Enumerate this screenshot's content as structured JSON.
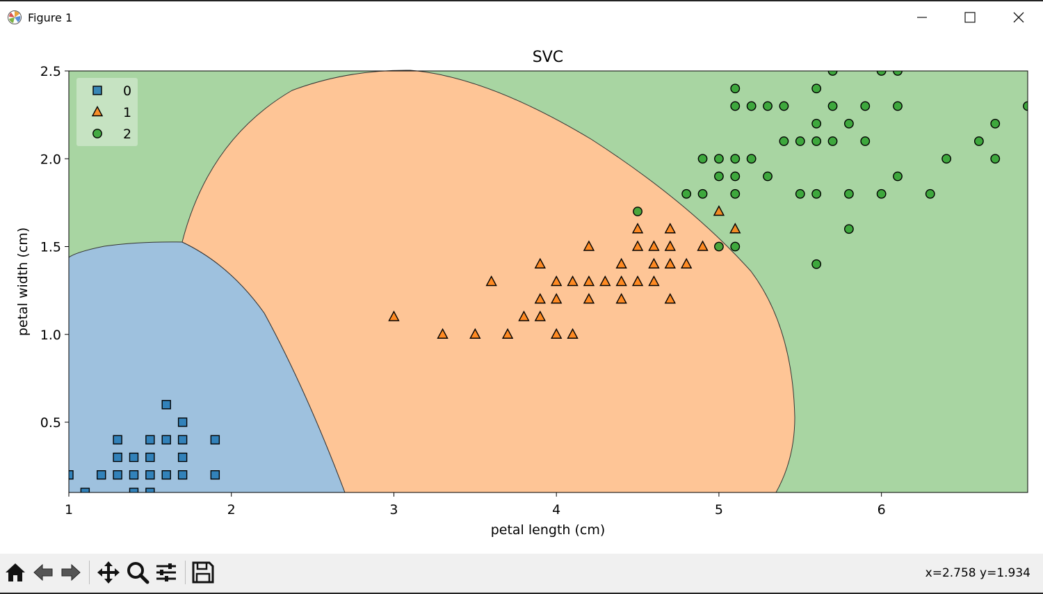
{
  "window": {
    "title": "Figure 1"
  },
  "toolbar": {
    "icons": [
      "home-icon",
      "back-icon",
      "forward-icon",
      "pan-icon",
      "zoom-icon",
      "configure-icon",
      "save-icon"
    ],
    "coords": "x=2.758 y=1.934"
  },
  "chart_data": {
    "type": "scatter",
    "title": "SVC",
    "xlabel": "petal length (cm)",
    "ylabel": "petal width (cm)",
    "xlim": [
      1.0,
      6.9
    ],
    "ylim": [
      0.1,
      2.5
    ],
    "xticks": [
      1,
      2,
      3,
      4,
      5,
      6
    ],
    "xtick_labels": [
      "1",
      "2",
      "3",
      "4",
      "5",
      "6"
    ],
    "yticks": [
      0.5,
      1.0,
      1.5,
      2.0,
      2.5
    ],
    "ytick_labels": [
      "0.5",
      "1.0",
      "1.5",
      "2.0",
      "2.5"
    ],
    "legend_position": "upper left",
    "grid": false,
    "decision_regions": {
      "colors": {
        "0": "#9ec1de",
        "1": "#fec596",
        "2": "#a8d5a2"
      }
    },
    "series": [
      {
        "name": "0",
        "marker": "square",
        "color": "#1f77b4",
        "points": [
          [
            1.0,
            0.2
          ],
          [
            1.1,
            0.1
          ],
          [
            1.2,
            0.2
          ],
          [
            1.3,
            0.2
          ],
          [
            1.3,
            0.3
          ],
          [
            1.3,
            0.4
          ],
          [
            1.4,
            0.1
          ],
          [
            1.4,
            0.2
          ],
          [
            1.4,
            0.3
          ],
          [
            1.5,
            0.1
          ],
          [
            1.5,
            0.2
          ],
          [
            1.5,
            0.3
          ],
          [
            1.5,
            0.4
          ],
          [
            1.6,
            0.2
          ],
          [
            1.6,
            0.4
          ],
          [
            1.6,
            0.6
          ],
          [
            1.7,
            0.2
          ],
          [
            1.7,
            0.3
          ],
          [
            1.7,
            0.4
          ],
          [
            1.7,
            0.5
          ],
          [
            1.9,
            0.2
          ],
          [
            1.9,
            0.4
          ]
        ]
      },
      {
        "name": "1",
        "marker": "triangle",
        "color": "#ff7f0e",
        "points": [
          [
            3.0,
            1.1
          ],
          [
            3.3,
            1.0
          ],
          [
            3.5,
            1.0
          ],
          [
            3.6,
            1.3
          ],
          [
            3.7,
            1.0
          ],
          [
            3.8,
            1.1
          ],
          [
            3.9,
            1.1
          ],
          [
            3.9,
            1.2
          ],
          [
            3.9,
            1.4
          ],
          [
            4.0,
            1.0
          ],
          [
            4.0,
            1.2
          ],
          [
            4.0,
            1.3
          ],
          [
            4.1,
            1.0
          ],
          [
            4.1,
            1.3
          ],
          [
            4.2,
            1.2
          ],
          [
            4.2,
            1.3
          ],
          [
            4.2,
            1.5
          ],
          [
            4.3,
            1.3
          ],
          [
            4.4,
            1.2
          ],
          [
            4.4,
            1.3
          ],
          [
            4.4,
            1.4
          ],
          [
            4.5,
            1.3
          ],
          [
            4.5,
            1.5
          ],
          [
            4.5,
            1.6
          ],
          [
            4.6,
            1.3
          ],
          [
            4.6,
            1.4
          ],
          [
            4.6,
            1.5
          ],
          [
            4.7,
            1.2
          ],
          [
            4.7,
            1.4
          ],
          [
            4.7,
            1.5
          ],
          [
            4.7,
            1.6
          ],
          [
            4.8,
            1.4
          ],
          [
            4.9,
            1.5
          ],
          [
            5.0,
            1.7
          ],
          [
            5.1,
            1.6
          ]
        ]
      },
      {
        "name": "2",
        "marker": "circle",
        "color": "#2ca02c",
        "points": [
          [
            4.5,
            1.7
          ],
          [
            4.8,
            1.8
          ],
          [
            4.9,
            1.8
          ],
          [
            4.9,
            2.0
          ],
          [
            5.0,
            1.5
          ],
          [
            5.0,
            1.9
          ],
          [
            5.0,
            2.0
          ],
          [
            5.1,
            1.5
          ],
          [
            5.1,
            1.8
          ],
          [
            5.1,
            1.9
          ],
          [
            5.1,
            2.0
          ],
          [
            5.1,
            2.3
          ],
          [
            5.1,
            2.4
          ],
          [
            5.2,
            2.0
          ],
          [
            5.2,
            2.3
          ],
          [
            5.3,
            1.9
          ],
          [
            5.3,
            2.3
          ],
          [
            5.4,
            2.1
          ],
          [
            5.4,
            2.3
          ],
          [
            5.5,
            1.8
          ],
          [
            5.5,
            2.1
          ],
          [
            5.6,
            1.4
          ],
          [
            5.6,
            1.8
          ],
          [
            5.6,
            2.1
          ],
          [
            5.6,
            2.2
          ],
          [
            5.6,
            2.4
          ],
          [
            5.7,
            2.1
          ],
          [
            5.7,
            2.3
          ],
          [
            5.7,
            2.5
          ],
          [
            5.8,
            1.6
          ],
          [
            5.8,
            1.8
          ],
          [
            5.8,
            2.2
          ],
          [
            5.9,
            2.1
          ],
          [
            5.9,
            2.3
          ],
          [
            6.0,
            1.8
          ],
          [
            6.0,
            2.5
          ],
          [
            6.1,
            1.9
          ],
          [
            6.1,
            2.3
          ],
          [
            6.1,
            2.5
          ],
          [
            6.3,
            1.8
          ],
          [
            6.4,
            2.0
          ],
          [
            6.6,
            2.1
          ],
          [
            6.7,
            2.0
          ],
          [
            6.7,
            2.2
          ],
          [
            6.9,
            2.3
          ]
        ]
      }
    ]
  }
}
